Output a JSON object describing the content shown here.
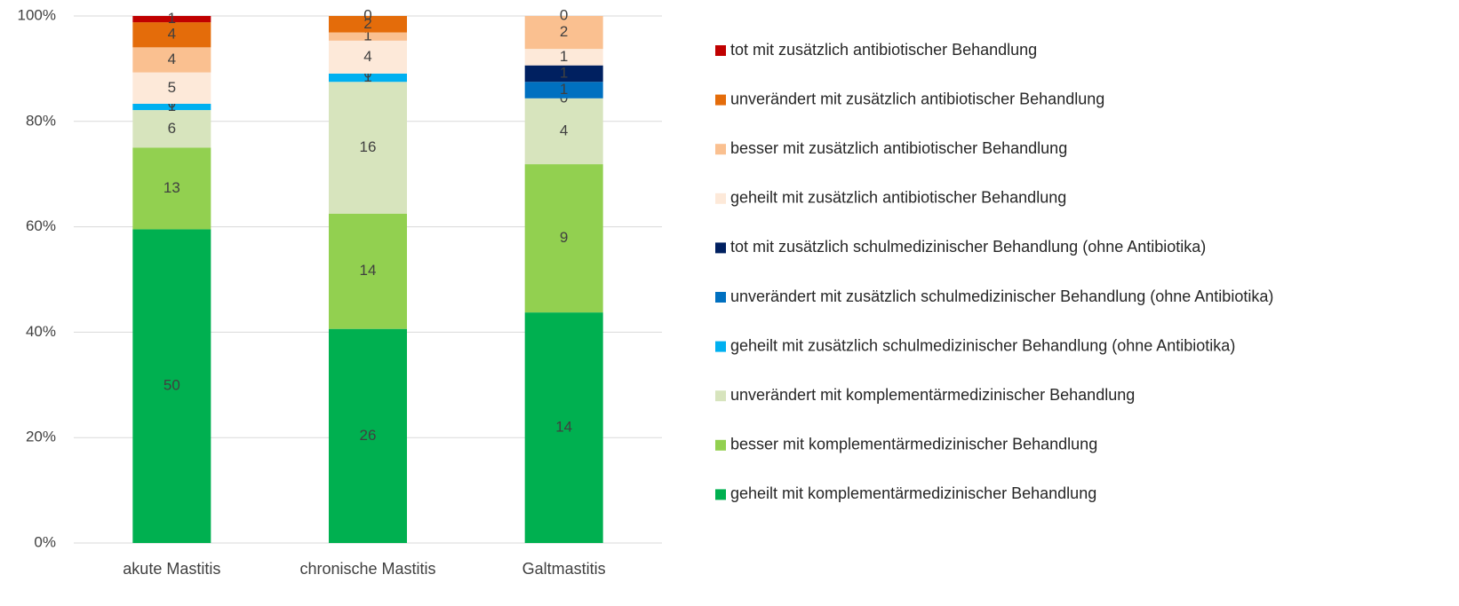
{
  "chart_data": {
    "type": "bar",
    "stacking": "percent",
    "categories": [
      "akute Mastitis",
      "chronische Mastitis",
      "Galtmastitis"
    ],
    "ylim": [
      0,
      100
    ],
    "yticks": [
      {
        "value": 0,
        "label": "0%"
      },
      {
        "value": 20,
        "label": "20%"
      },
      {
        "value": 40,
        "label": "40%"
      },
      {
        "value": 60,
        "label": "60%"
      },
      {
        "value": 80,
        "label": "80%"
      },
      {
        "value": 100,
        "label": "100%"
      }
    ],
    "grid": true,
    "legend": "right",
    "series": [
      {
        "name": "geheilt mit komplementärmedizinischer Behandlung",
        "color": "#00b050",
        "values": [
          50,
          26,
          14
        ]
      },
      {
        "name": "besser mit komplementärmedizinischer Behandlung",
        "color": "#92d050",
        "values": [
          13,
          14,
          9
        ]
      },
      {
        "name": "unverändert mit komplementärmedizinischer Behandlung",
        "color": "#d7e4bd",
        "values": [
          6,
          16,
          4
        ]
      },
      {
        "name": "geheilt mit zusätzlich schulmedizinischer Behandlung (ohne Antibiotika)",
        "color": "#00b0f0",
        "values": [
          1,
          1,
          0
        ]
      },
      {
        "name": "unverändert mit zusätzlich schulmedizinischer Behandlung (ohne Antibiotika)",
        "color": "#0070c0",
        "values": [
          0,
          0,
          1
        ]
      },
      {
        "name": "tot mit zusätzlich schulmedizinischer Behandlung (ohne Antibiotika)",
        "color": "#002060",
        "values": [
          null,
          null,
          1
        ]
      },
      {
        "name": "geheilt mit zusätzlich antibiotischer Behandlung",
        "color": "#fde9d9",
        "values": [
          5,
          4,
          1
        ]
      },
      {
        "name": "besser mit zusätzlich antibiotischer Behandlung",
        "color": "#fac090",
        "values": [
          4,
          1,
          2
        ]
      },
      {
        "name": "unverändert mit zusätzlich antibiotischer Behandlung",
        "color": "#e46c0a",
        "values": [
          4,
          2,
          0
        ]
      },
      {
        "name": "tot mit zusätzlich antibiotischer Behandlung",
        "color": "#c00000",
        "values": [
          1,
          0,
          null
        ]
      }
    ]
  }
}
